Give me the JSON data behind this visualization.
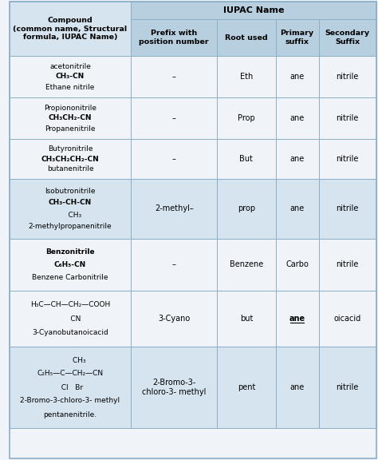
{
  "title": "IUPAC Name",
  "col1_header": "Compound\n(common name, Structural\nformula, IUPAC Name)",
  "col2_header": "Prefix with\nposition number",
  "col3_header": "Root used",
  "col4_header": "Primary\nsuffix",
  "col5_header": "Secondary\nSuffix",
  "bg_light": "#d6e4f0",
  "bg_dark": "#b8cfe0",
  "bg_white": "#f0f4f8",
  "border_color": "#8aafc8",
  "rows": [
    {
      "compound_lines": [
        "acetonitrile",
        "CH₃-CN",
        "Ethane nitrile"
      ],
      "compound_bold": [
        false,
        true,
        false
      ],
      "prefix": "–",
      "root": "Eth",
      "primary": "ane",
      "primary_bold": false,
      "secondary": "nitrile"
    },
    {
      "compound_lines": [
        "Propiononitrile",
        "CH₃CH₂-CN",
        "Propanenitrile"
      ],
      "compound_bold": [
        false,
        true,
        false
      ],
      "prefix": "–",
      "root": "Prop",
      "primary": "ane",
      "primary_bold": false,
      "secondary": "nitrile"
    },
    {
      "compound_lines": [
        "Butyronitrile",
        "CH₃CH₂CH₂-CN",
        "butanenitrile"
      ],
      "compound_bold": [
        false,
        true,
        false
      ],
      "prefix": "–",
      "root": "But",
      "primary": "ane",
      "primary_bold": false,
      "secondary": "nitrile"
    },
    {
      "compound_lines": [
        "Isobutronitrile",
        "CH₃-CH-CN",
        "    CH₃",
        "2-methylpropanenitrile"
      ],
      "compound_bold": [
        false,
        true,
        false,
        false
      ],
      "prefix": "2-methyl–",
      "root": "prop",
      "primary": "ane",
      "primary_bold": false,
      "secondary": "nitrile"
    },
    {
      "compound_lines": [
        "Benzonitrile",
        "C₆H₅-CN",
        "Benzene Carbonitrile"
      ],
      "compound_bold": [
        true,
        true,
        false
      ],
      "prefix": "–",
      "root": "Benzene",
      "primary": "Carbo",
      "primary_bold": false,
      "secondary": "nitrile"
    },
    {
      "compound_lines": [
        "H₃C—CH—CH₂—COOH",
        "     CN",
        "3-Cyanobutanoicacid"
      ],
      "compound_bold": [
        false,
        false,
        false
      ],
      "prefix": "3-Cyano",
      "root": "but",
      "primary": "ane",
      "primary_bold": true,
      "primary_underline": true,
      "secondary": "oicacid"
    },
    {
      "compound_lines": [
        "        CH₃",
        "C₂H₅—C—CH₂—CN",
        "  Cl   Br",
        "2-Bromo-3-chloro-3- methyl",
        "pentanenitrile."
      ],
      "compound_bold": [
        false,
        false,
        false,
        false,
        false
      ],
      "prefix": "2-Bromo-3-\nchloro-3- methyl",
      "root": "pent",
      "primary": "ane",
      "primary_bold": false,
      "secondary": "nitrile"
    }
  ]
}
